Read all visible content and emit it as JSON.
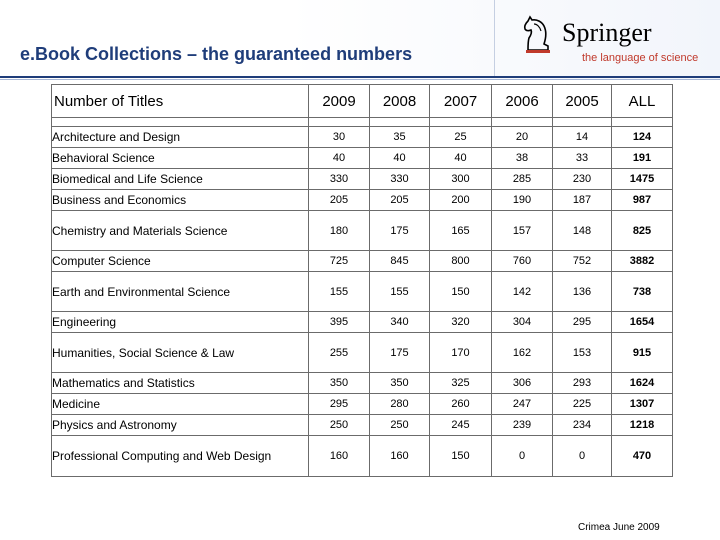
{
  "header": {
    "title": "e.Book Collections – the guaranteed numbers",
    "logo_name": "Springer",
    "logo_tagline": "the language of science",
    "logo_icon": "knight-chess-piece-icon",
    "accent_color": "#1f3d7a",
    "tagline_color": "#c0392b"
  },
  "table": {
    "columns": [
      "Number of Titles",
      "2009",
      "2008",
      "2007",
      "2006",
      "2005",
      "ALL"
    ],
    "rows": [
      {
        "name": "Architecture and Design",
        "values": [
          "30",
          "35",
          "25",
          "20",
          "14"
        ],
        "all": "124"
      },
      {
        "name": "Behavioral Science",
        "values": [
          "40",
          "40",
          "40",
          "38",
          "33"
        ],
        "all": "191"
      },
      {
        "name": "Biomedical and Life Science",
        "values": [
          "330",
          "330",
          "300",
          "285",
          "230"
        ],
        "all": "1475"
      },
      {
        "name": "Business and Economics",
        "values": [
          "205",
          "205",
          "200",
          "190",
          "187"
        ],
        "all": "987"
      },
      {
        "name": "Chemistry and Materials Science",
        "values": [
          "180",
          "175",
          "165",
          "157",
          "148"
        ],
        "all": "825"
      },
      {
        "name": "Computer Science",
        "values": [
          "725",
          "845",
          "800",
          "760",
          "752"
        ],
        "all": "3882"
      },
      {
        "name": "Earth and Environmental Science",
        "values": [
          "155",
          "155",
          "150",
          "142",
          "136"
        ],
        "all": "738"
      },
      {
        "name": "Engineering",
        "values": [
          "395",
          "340",
          "320",
          "304",
          "295"
        ],
        "all": "1654"
      },
      {
        "name": "Humanities, Social Science & Law",
        "values": [
          "255",
          "175",
          "170",
          "162",
          "153"
        ],
        "all": "915"
      },
      {
        "name": "Mathematics and Statistics",
        "values": [
          "350",
          "350",
          "325",
          "306",
          "293"
        ],
        "all": "1624"
      },
      {
        "name": "Medicine",
        "values": [
          "295",
          "280",
          "260",
          "247",
          "225"
        ],
        "all": "1307"
      },
      {
        "name": "Physics and Astronomy",
        "values": [
          "250",
          "250",
          "245",
          "239",
          "234"
        ],
        "all": "1218"
      },
      {
        "name": "Professional Computing and Web Design",
        "values": [
          "160",
          "160",
          "150",
          "0",
          "0"
        ],
        "all": "470"
      }
    ]
  },
  "footer": {
    "note": "Crimea June 2009"
  }
}
